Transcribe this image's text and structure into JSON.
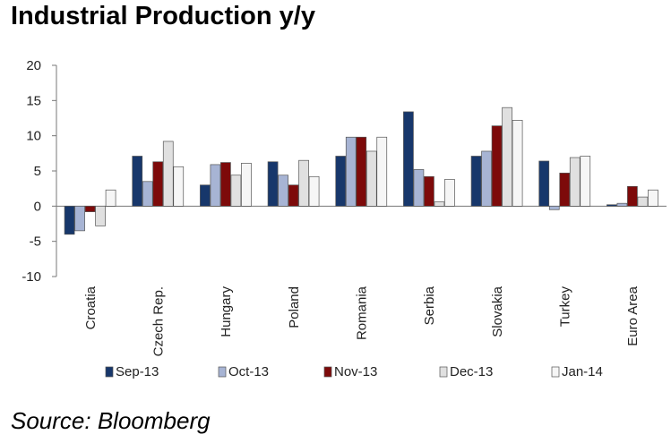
{
  "chart_data": {
    "type": "bar",
    "title": "Industrial Production y/y",
    "source": "Source: Bloomberg",
    "xlabel": "",
    "ylabel": "",
    "ylim": [
      -10,
      20
    ],
    "yticks": [
      -10,
      -5,
      0,
      5,
      10,
      15,
      20
    ],
    "ytick_labels": [
      "-10",
      "-5",
      "0",
      "5",
      "10",
      "15",
      "20"
    ],
    "grid": false,
    "legend_position": "bottom",
    "categories": [
      "Croatia",
      "Czech Rep.",
      "Hungary",
      "Poland",
      "Romania",
      "Serbia",
      "Slovakia",
      "Turkey",
      "Euro Area"
    ],
    "series": [
      {
        "name": "Sep-13",
        "color": "#17376b",
        "values": [
          -4.0,
          7.1,
          3.0,
          6.3,
          7.1,
          13.4,
          7.1,
          6.4,
          0.2
        ]
      },
      {
        "name": "Oct-13",
        "color": "#a7b4d4",
        "values": [
          -3.5,
          3.5,
          5.9,
          4.4,
          9.8,
          5.2,
          7.8,
          -0.5,
          0.4
        ]
      },
      {
        "name": "Nov-13",
        "color": "#7d0a0a",
        "values": [
          -0.8,
          6.3,
          6.2,
          3.0,
          9.8,
          4.2,
          11.4,
          4.7,
          2.8
        ]
      },
      {
        "name": "Dec-13",
        "color": "#e0e0e0",
        "values": [
          -2.8,
          9.2,
          4.4,
          6.5,
          7.8,
          0.6,
          14.0,
          6.9,
          1.3
        ]
      },
      {
        "name": "Jan-14",
        "color": "#f6f6f6",
        "values": [
          2.3,
          5.6,
          6.1,
          4.2,
          9.8,
          3.8,
          12.2,
          7.1,
          2.3
        ]
      }
    ]
  }
}
